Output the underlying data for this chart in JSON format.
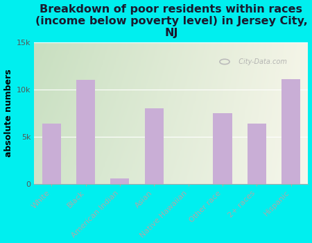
{
  "categories": [
    "White",
    "Black",
    "American Indian",
    "Asian",
    "Native Hawaiian",
    "Other race",
    "2+ races",
    "Hispanic"
  ],
  "values": [
    6400,
    11000,
    600,
    8000,
    0,
    7500,
    6400,
    11100
  ],
  "bar_color": "#c9aed6",
  "background_color": "#00efef",
  "plot_bg_left": "#c8dfc0",
  "plot_bg_right": "#f5f5e8",
  "title": "Breakdown of poor residents within races\n(income below poverty level) in Jersey City,\nNJ",
  "ylabel": "absolute numbers",
  "ylim": [
    0,
    15000
  ],
  "yticks": [
    0,
    5000,
    10000,
    15000
  ],
  "ytick_labels": [
    "0",
    "5k",
    "10k",
    "15k"
  ],
  "watermark": "City-Data.com",
  "title_fontsize": 11.5,
  "ylabel_fontsize": 9,
  "tick_fontsize": 8,
  "label_color": "#00efef",
  "title_color": "#1a1a2e"
}
